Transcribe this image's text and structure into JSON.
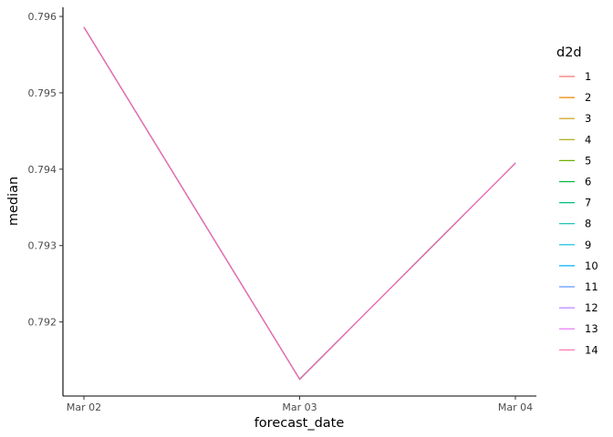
{
  "chart_data": {
    "type": "line",
    "title": "",
    "xlabel": "forecast_date",
    "ylabel": "median",
    "x": [
      "Mar 02",
      "Mar 03",
      "Mar 04"
    ],
    "xticks": [
      "Mar 02",
      "Mar 03",
      "Mar 04"
    ],
    "yticks": [
      0.792,
      0.793,
      0.794,
      0.795,
      0.796
    ],
    "ytick_labels": [
      "0.792",
      "0.793",
      "0.794",
      "0.795",
      "0.796"
    ],
    "ylim": [
      0.79103,
      0.79612
    ],
    "grid": false,
    "legend": {
      "title": "d2d",
      "position": "right"
    },
    "series": [
      {
        "name": "1",
        "color": "#F8766D",
        "values": [
          0.79586,
          0.79125,
          0.79408
        ]
      },
      {
        "name": "2",
        "color": "#E58700",
        "values": [
          0.79586,
          0.79125,
          0.79408
        ]
      },
      {
        "name": "3",
        "color": "#C99800",
        "values": [
          0.79586,
          0.79125,
          0.79408
        ]
      },
      {
        "name": "4",
        "color": "#A3A500",
        "values": [
          0.79586,
          0.79125,
          0.79408
        ]
      },
      {
        "name": "5",
        "color": "#6BB100",
        "values": [
          0.79586,
          0.79125,
          0.79408
        ]
      },
      {
        "name": "6",
        "color": "#00BA38",
        "values": [
          0.79586,
          0.79125,
          0.79408
        ]
      },
      {
        "name": "7",
        "color": "#00BF7D",
        "values": [
          0.79586,
          0.79125,
          0.79408
        ]
      },
      {
        "name": "8",
        "color": "#00C0AF",
        "values": [
          0.79586,
          0.79125,
          0.79408
        ]
      },
      {
        "name": "9",
        "color": "#00BCD8",
        "values": [
          0.79586,
          0.79125,
          0.79408
        ]
      },
      {
        "name": "10",
        "color": "#00B0F6",
        "values": [
          0.79586,
          0.79125,
          0.79408
        ]
      },
      {
        "name": "11",
        "color": "#619CFF",
        "values": [
          0.79586,
          0.79125,
          0.79408
        ]
      },
      {
        "name": "12",
        "color": "#B983FF",
        "values": [
          0.79586,
          0.79125,
          0.79408
        ]
      },
      {
        "name": "13",
        "color": "#E76BF3",
        "values": [
          0.79586,
          0.79125,
          0.79408
        ]
      },
      {
        "name": "14",
        "color": "#FF67A4",
        "values": [
          0.79586,
          0.79125,
          0.79408
        ]
      }
    ]
  }
}
